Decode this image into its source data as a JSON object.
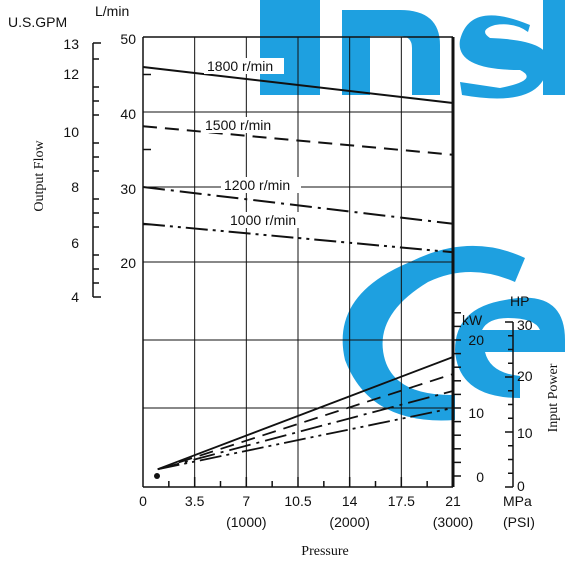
{
  "chart_data": {
    "type": "line",
    "xlabel": "Pressure",
    "x_unit_primary": "MPa",
    "x_unit_secondary": "(PSI)",
    "x_ticks_primary": [
      "0",
      "3.5",
      "7",
      "10.5",
      "14",
      "17.5",
      "21"
    ],
    "x_ticks_secondary": [
      "(1000)",
      "(2000)",
      "(3000)"
    ],
    "xlim": [
      0,
      21
    ],
    "flow_axis": {
      "label": "Output Flow",
      "unit_lpm": "L/min",
      "unit_gpm": "U.S.GPM",
      "lpm_ticks": [
        "50",
        "40",
        "30",
        "20"
      ],
      "gpm_ticks": [
        "13",
        "12",
        "10",
        "8",
        "6",
        "4"
      ]
    },
    "power_axis": {
      "label": "Input Power",
      "unit_kw": "kW",
      "unit_hp": "HP",
      "kw_ticks": [
        "20",
        "10",
        "0"
      ],
      "hp_ticks": [
        "30",
        "20",
        "10",
        "0"
      ]
    },
    "flow_series": [
      {
        "name": "1800 r/min",
        "dash": "solid",
        "x": [
          0,
          21
        ],
        "y": [
          46.0,
          41.2
        ]
      },
      {
        "name": "1500 r/min",
        "dash": "dash",
        "x": [
          0,
          21
        ],
        "y": [
          38.1,
          34.3
        ]
      },
      {
        "name": "1200 r/min",
        "dash": "dashdot",
        "x": [
          0,
          21
        ],
        "y": [
          30.0,
          25.1
        ]
      },
      {
        "name": "1000 r/min",
        "dash": "dashdotdot",
        "x": [
          0,
          21
        ],
        "y": [
          25.1,
          21.3
        ]
      }
    ],
    "power_series": [
      {
        "name": "1800 r/min",
        "dash": "solid",
        "x": [
          1,
          21
        ],
        "y": [
          1.0,
          17.5
        ]
      },
      {
        "name": "1500 r/min",
        "dash": "dash",
        "x": [
          1,
          21
        ],
        "y": [
          1.0,
          15.0
        ]
      },
      {
        "name": "1200 r/min",
        "dash": "dashdot",
        "x": [
          1,
          21
        ],
        "y": [
          1.0,
          12.5
        ]
      },
      {
        "name": "1000 r/min",
        "dash": "dashdotdot",
        "x": [
          1,
          21
        ],
        "y": [
          1.0,
          10.0
        ]
      }
    ],
    "grid": true,
    "watermark": {
      "text": "Inst Ce",
      "color": "#1ea0e0"
    }
  }
}
